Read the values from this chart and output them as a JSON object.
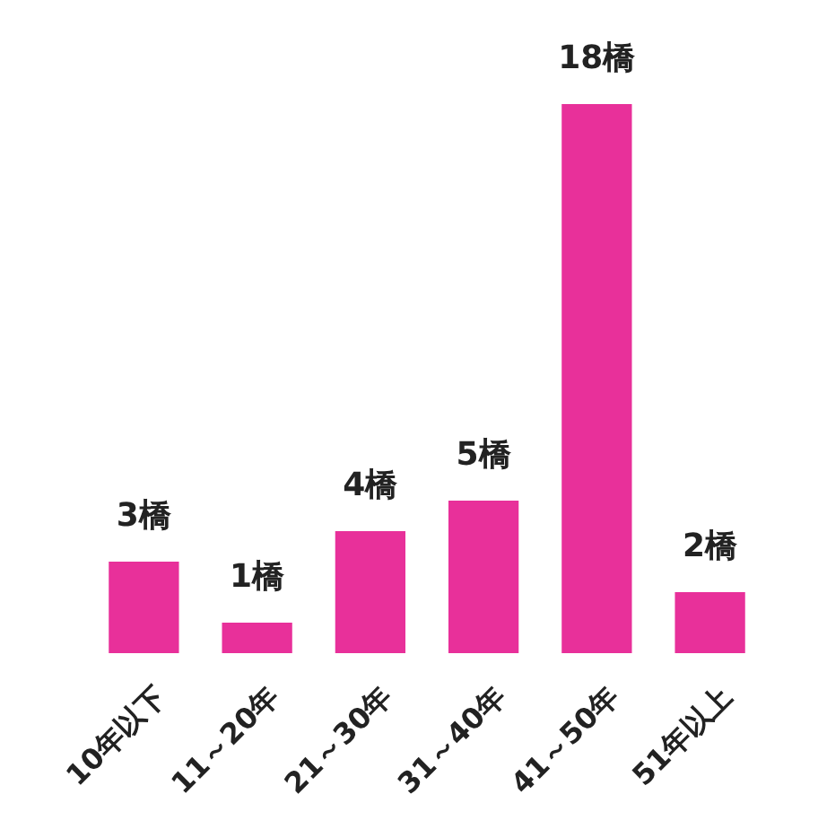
{
  "chart_data": {
    "type": "bar",
    "categories": [
      "10年以下",
      "11～20年",
      "21～30年",
      "31～40年",
      "41～50年",
      "51年以上"
    ],
    "values": [
      3,
      1,
      4,
      5,
      18,
      2
    ],
    "value_labels": [
      "3橋",
      "1橋",
      "4橋",
      "5橋",
      "18橋",
      "2橋"
    ],
    "color": "#e8309a"
  }
}
